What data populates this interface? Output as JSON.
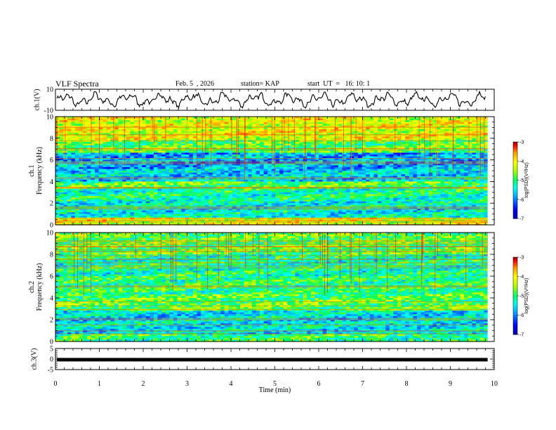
{
  "header": {
    "title": "VLF Spectra",
    "date": "Feb. 5  , 2026",
    "station": "station= KAP",
    "start": "start  UT  =   16: 10: 1"
  },
  "chart_data": [
    {
      "type": "line",
      "panel": "ch1-waveform",
      "ylabel": "ch.1(V)",
      "ylim": [
        -10,
        10
      ],
      "y_ticks": [
        "10",
        "-10"
      ],
      "xlim": [
        0,
        10
      ],
      "color": "#000000"
    },
    {
      "type": "heatmap",
      "panel": "ch1-spectrogram",
      "ylabel": "ch.1\nFrequency  (kHz)",
      "ylabel_lines": [
        "ch.1",
        "Frequency  (kHz)"
      ],
      "ylim": [
        0,
        10
      ],
      "y_ticks": [
        "0",
        "2",
        "4",
        "6",
        "8",
        "10"
      ],
      "xlim": [
        0,
        10
      ],
      "data_end_min": 9.85,
      "colorbar": {
        "label": "log(PSD)(V²/Hz)",
        "range": [
          -7,
          -3
        ],
        "ticks": [
          "-3",
          "-4",
          "-5",
          "-6",
          "-7"
        ]
      },
      "bands_khz": [
        {
          "from": 0.0,
          "to": 0.6,
          "level": -4.2
        },
        {
          "from": 0.6,
          "to": 2.2,
          "level": -5.4
        },
        {
          "from": 2.2,
          "to": 3.4,
          "level": -5.2
        },
        {
          "from": 3.4,
          "to": 4.0,
          "level": -4.8
        },
        {
          "from": 4.0,
          "to": 5.2,
          "level": -5.6
        },
        {
          "from": 5.2,
          "to": 6.6,
          "level": -5.8
        },
        {
          "from": 6.6,
          "to": 7.8,
          "level": -4.8
        },
        {
          "from": 7.8,
          "to": 10.0,
          "level": -4.2
        }
      ]
    },
    {
      "type": "heatmap",
      "panel": "ch2-spectrogram",
      "ylabel": "ch.2\nFrequency  (kHz)",
      "ylabel_lines": [
        "ch.2",
        "Frequency  (kHz)"
      ],
      "ylim": [
        0,
        10
      ],
      "y_ticks": [
        "0",
        "2",
        "4",
        "6",
        "8",
        "10"
      ],
      "xlim": [
        0,
        10
      ],
      "data_end_min": 9.85,
      "colorbar": {
        "label": "log(PSD)(V²/Hz)",
        "range": [
          -7,
          -3
        ],
        "ticks": [
          "-3",
          "-4",
          "-5",
          "-6",
          "-7"
        ]
      },
      "bands_khz": [
        {
          "from": 0.0,
          "to": 0.6,
          "level": -5.0
        },
        {
          "from": 0.6,
          "to": 2.8,
          "level": -5.5
        },
        {
          "from": 2.8,
          "to": 4.4,
          "level": -4.8
        },
        {
          "from": 4.4,
          "to": 6.0,
          "level": -5.0
        },
        {
          "from": 6.0,
          "to": 8.0,
          "level": -5.2
        },
        {
          "from": 8.0,
          "to": 10.0,
          "level": -4.8
        }
      ]
    },
    {
      "type": "line",
      "panel": "ch3-waveform",
      "ylabel": "ch.3(V)",
      "ylim": [
        -5,
        5
      ],
      "y_ticks": [
        "5",
        "0",
        "-5"
      ],
      "xlim": [
        0,
        10
      ],
      "value_V": -0.3,
      "color": "#000000"
    }
  ],
  "x_axis": {
    "label": "Time  (min)",
    "ticks": [
      "0",
      "1",
      "2",
      "3",
      "4",
      "5",
      "6",
      "7",
      "8",
      "9",
      "10"
    ]
  }
}
